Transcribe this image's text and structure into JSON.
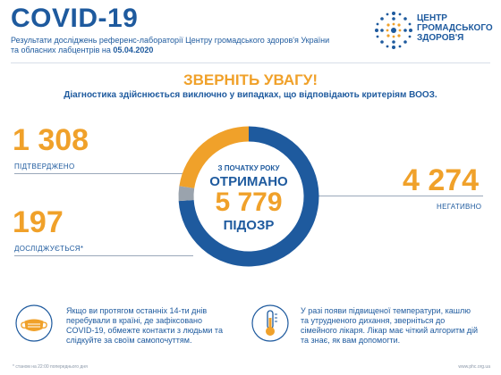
{
  "header": {
    "title": "COVID-19",
    "subtitle_line1": "Результати досліджень референс-лабораторії Центру громадського здоров'я України",
    "subtitle_line2_prefix": "та обласних лабцентрів на ",
    "date": "05.04.2020"
  },
  "logo": {
    "line1": "ЦЕНТР",
    "line2": "ГРОМАДСЬКОГО",
    "line3": "ЗДОРОВ'Я"
  },
  "attention": "ЗВЕРНІТЬ УВАГУ!",
  "diagnostics_note": "Діагностика здійснюється виключно у випадках, що відповідають критеріям ВООЗ.",
  "stats": {
    "confirmed_value": "1 308",
    "confirmed_label": "ПІДТВЕРДЖЕНО",
    "investigating_value": "197",
    "investigating_label": "ДОСЛІДЖУЄТЬСЯ*",
    "negative_value": "4 274",
    "negative_label": "НЕГАТИВНО"
  },
  "center": {
    "line1": "З ПОЧАТКУ РОКУ",
    "line2": "ОТРИМАНО",
    "value": "5 779",
    "line4": "ПІДОЗР"
  },
  "ring": {
    "total": 5779,
    "confirmed": 1308,
    "investigating": 197,
    "negative": 4274,
    "colors": {
      "confirmed": "#f0a12a",
      "investigating": "#9aa3ad",
      "negative": "#1e5a9e"
    }
  },
  "footer": {
    "left_text": "Якщо ви протягом останніх 14-ти днів перебували в країні, де зафіксовано COVID-19, обмежте контакти з людьми та слідкуйте за своїм самопочуттям.",
    "right_text": "У разі появи підвищеної температури, кашлю та утрудненого дихання, зверніться до сімейного лікаря. Лікар має чіткий алгоритм дій та знає, як вам допомогти.",
    "note_left": "* станом на 22:00 попереднього дня",
    "note_right": "www.phc.org.ua"
  },
  "icons": {
    "left": "face-mask-icon",
    "right": "thermometer-icon",
    "logo": "dotted-star-logo"
  }
}
